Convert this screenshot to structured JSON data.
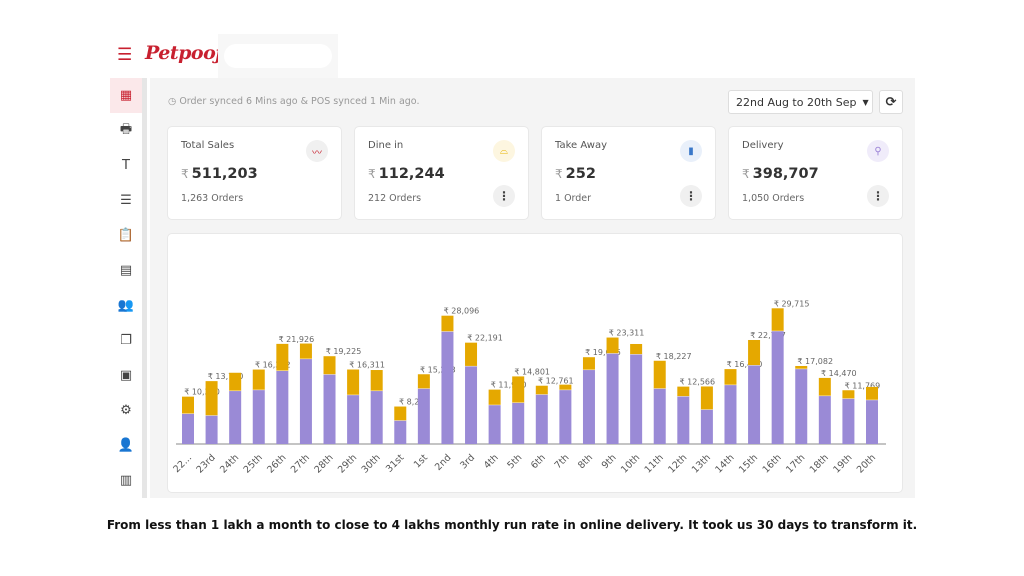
{
  "brand": {
    "logo_text": "Petpooja"
  },
  "sidebar": {
    "icons": [
      "dashboard-icon",
      "billing-icon",
      "table-icon",
      "menu-list-icon",
      "clipboard-icon",
      "inventory-icon",
      "customers-icon",
      "reports-icon",
      "receipt-icon",
      "settings-icon",
      "user-settings-icon",
      "store-icon"
    ]
  },
  "header": {
    "sync_status": "Order synced 6 Mins ago & POS synced 1 Min ago.",
    "date_range": "22nd Aug to 20th Sep"
  },
  "cards": [
    {
      "title": "Total Sales",
      "currency": "₹",
      "value": "511,203",
      "orders": "1,263 Orders",
      "icon": "trend-icon",
      "icon_color": "#c8202f"
    },
    {
      "title": "Dine in",
      "currency": "₹",
      "value": "112,244",
      "orders": "212 Orders",
      "icon": "cloche-icon",
      "icon_color": "#e8b400"
    },
    {
      "title": "Take Away",
      "currency": "₹",
      "value": "252",
      "orders": "1 Order",
      "icon": "takeaway-bag-icon",
      "icon_color": "#3a78c9"
    },
    {
      "title": "Delivery",
      "currency": "₹",
      "value": "398,707",
      "orders": "1,050 Orders",
      "icon": "scooter-icon",
      "icon_color": "#9b82d6"
    }
  ],
  "chart_data": {
    "type": "bar",
    "stacked": true,
    "categories": [
      "22...",
      "23rd",
      "24th",
      "25th",
      "26th",
      "27th",
      "28th",
      "29th",
      "30th",
      "31st",
      "1st",
      "2nd",
      "3rd",
      "4th",
      "5th",
      "6th",
      "7th",
      "8th",
      "9th",
      "10th",
      "11th",
      "12th",
      "13th",
      "14th",
      "15th",
      "16th",
      "17th",
      "18th",
      "19th",
      "20th"
    ],
    "series": [
      {
        "color": "#9a8ad6",
        "values": [
          6700,
          6300,
          11700,
          11900,
          16100,
          18700,
          15300,
          10800,
          11700,
          5200,
          12200,
          24700,
          17100,
          8600,
          9100,
          10900,
          11900,
          16300,
          19900,
          19700,
          12200,
          10500,
          7600,
          13000,
          17300,
          24800,
          16500,
          10600,
          10000,
          9700
        ]
      },
      {
        "color": "#e5a800",
        "values": [
          3670,
          7470,
          3900,
          4402,
          5826,
          3300,
          3925,
          5511,
          4500,
          3005,
          3073,
          3396,
          5091,
          3310,
          5701,
          1861,
          1100,
          2706,
          3411,
          2200,
          6027,
          2066,
          5000,
          3400,
          5477,
          4915,
          582,
          3870,
          1769,
          2800
        ]
      }
    ],
    "total_labels": [
      "₹ 10,370",
      "₹ 13,770",
      null,
      "₹ 16,302",
      "₹ 21,926",
      null,
      "₹ 19,225",
      "₹ 16,311",
      null,
      "₹ 8,205",
      "₹ 15,273",
      "₹ 28,096",
      "₹ 22,191",
      "₹ 11,910",
      "₹ 14,801",
      "₹ 12,761",
      null,
      "₹ 19,006",
      "₹ 23,311",
      null,
      "₹ 18,227",
      "₹ 12,566",
      null,
      "₹ 16,400",
      "₹ 22,777",
      "₹ 29,715",
      "₹ 17,082",
      "₹ 14,470",
      "₹ 11,769",
      null
    ],
    "ylim": [
      0,
      30000
    ],
    "grid": false
  },
  "caption": "From less than 1 lakh a month to close to 4 lakhs monthly run rate in online delivery. It took us 30 days to transform it."
}
